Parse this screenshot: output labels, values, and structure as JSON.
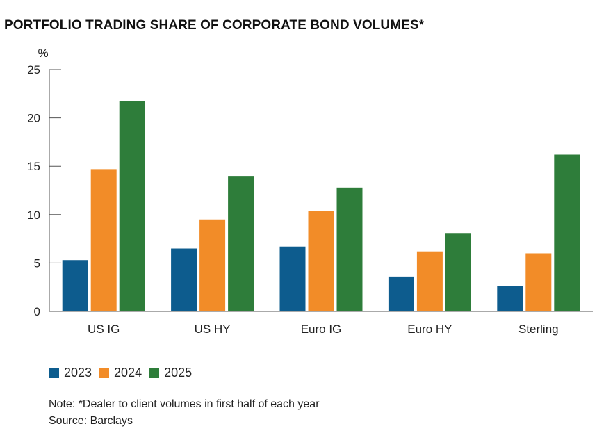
{
  "colors": {
    "series_2023": "#0d5c8e",
    "series_2024": "#f28c28",
    "series_2025": "#2e7d3a",
    "axis": "#555555",
    "rule": "#a9a9a9"
  },
  "chart_data": {
    "type": "bar",
    "title": "PORTFOLIO TRADING SHARE OF CORPORATE BOND VOLUMES*",
    "ylabel": "%",
    "xlabel": "",
    "ylim": [
      0,
      25
    ],
    "yticks": [
      0,
      5,
      10,
      15,
      20,
      25
    ],
    "categories": [
      "US IG",
      "US HY",
      "Euro IG",
      "Euro HY",
      "Sterling"
    ],
    "series": [
      {
        "name": "2023",
        "color": "#0d5c8e",
        "values": [
          5.3,
          6.5,
          6.7,
          3.6,
          2.6
        ]
      },
      {
        "name": "2024",
        "color": "#f28c28",
        "values": [
          14.7,
          9.5,
          10.4,
          6.2,
          6.0
        ]
      },
      {
        "name": "2025",
        "color": "#2e7d3a",
        "values": [
          21.7,
          14.0,
          12.8,
          8.1,
          16.2
        ]
      }
    ],
    "grid": false,
    "legend_position": "bottom-left"
  },
  "footnotes": {
    "note": "Note: *Dealer to client volumes in first half of each year",
    "source": "Source: Barclays"
  }
}
